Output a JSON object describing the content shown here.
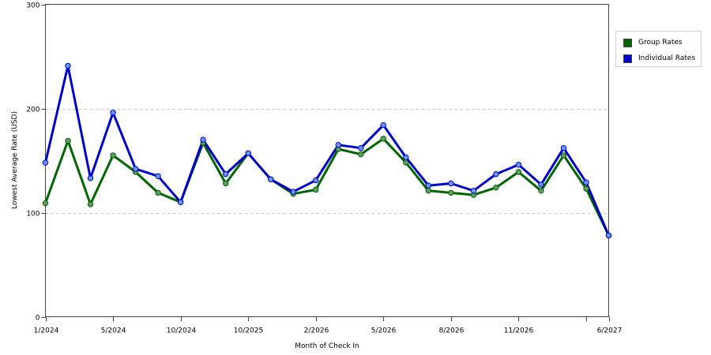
{
  "chart_data": {
    "type": "line",
    "xlabel": "Month of Check In",
    "ylabel": "Lowest Average Rate (USD)",
    "ylim": [
      0,
      300
    ],
    "yticks": [
      0,
      100,
      200,
      300
    ],
    "grid": true,
    "legend_position": "top-right",
    "x_tick_labels": [
      {
        "index": 0,
        "label": "1/2024"
      },
      {
        "index": 3,
        "label": "5/2024"
      },
      {
        "index": 6,
        "label": "10/2024"
      },
      {
        "index": 9,
        "label": "10/2025"
      },
      {
        "index": 12,
        "label": "2/2026"
      },
      {
        "index": 15,
        "label": "5/2026"
      },
      {
        "index": 18,
        "label": "8/2026"
      },
      {
        "index": 21,
        "label": "11/2026"
      },
      {
        "index": 24,
        "label": ""
      },
      {
        "index": 25,
        "label": "6/2027"
      }
    ],
    "point_count": 26,
    "series": [
      {
        "name": "Group Rates",
        "color": "#006600",
        "marker_color": "#669966",
        "values": [
          109,
          169,
          108,
          155,
          139,
          119,
          110,
          167,
          128,
          157,
          132,
          118,
          122,
          161,
          156,
          171,
          148,
          121,
          119,
          117,
          124,
          139,
          121,
          155,
          123,
          78
        ]
      },
      {
        "name": "Individual Rates",
        "color": "#0000cc",
        "marker_color": "#6699ff",
        "values": [
          148,
          241,
          133,
          196,
          142,
          135,
          110,
          170,
          137,
          157,
          132,
          120,
          131,
          165,
          162,
          184,
          153,
          126,
          128,
          121,
          137,
          146,
          127,
          162,
          129,
          78
        ]
      }
    ]
  }
}
